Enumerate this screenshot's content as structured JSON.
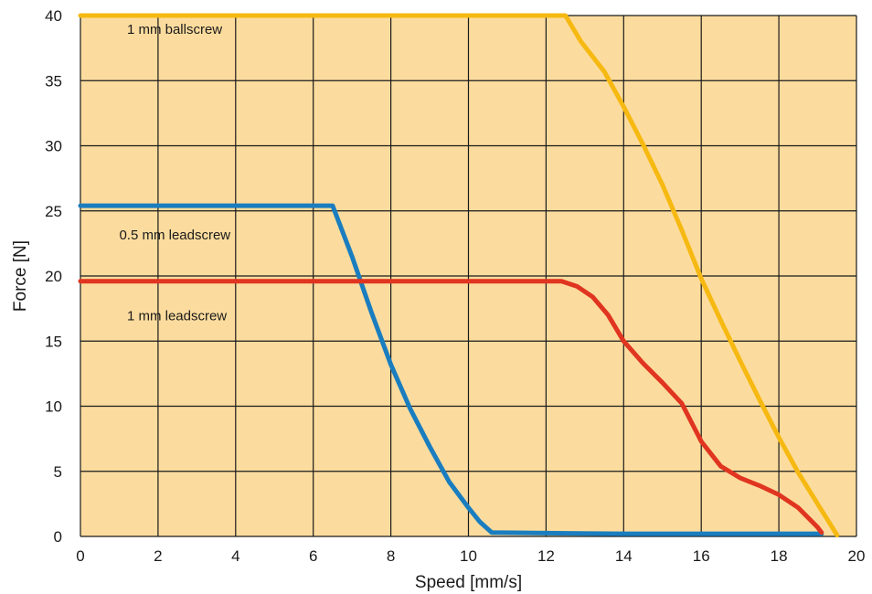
{
  "chart_data": {
    "type": "line",
    "xlabel": "Speed [mm/s]",
    "ylabel": "Force [N]",
    "xlim": [
      0,
      20
    ],
    "ylim": [
      0,
      40
    ],
    "xticks": [
      0,
      2,
      4,
      6,
      8,
      10,
      12,
      14,
      16,
      18,
      20
    ],
    "yticks": [
      0,
      5,
      10,
      15,
      20,
      25,
      30,
      35,
      40
    ],
    "grid": true,
    "colors": {
      "plot_background": "#fcdc9e",
      "grid": "#1a1a1a"
    },
    "series": [
      {
        "name": "1 mm ballscrew",
        "color": "#f6b912",
        "x": [
          0,
          12.5,
          12.9,
          13.5,
          14.0,
          14.5,
          15.0,
          15.5,
          16.0,
          16.5,
          17.0,
          17.5,
          18.0,
          18.5,
          19.0,
          19.5
        ],
        "y": [
          40,
          40,
          38.0,
          35.7,
          33.0,
          30.1,
          27.0,
          23.5,
          19.8,
          16.6,
          13.5,
          10.5,
          7.6,
          4.9,
          2.5,
          0.1
        ]
      },
      {
        "name": "0.5 mm leadscrew",
        "color": "#1a7dbf",
        "x": [
          0,
          6.5,
          7.0,
          7.5,
          8.0,
          8.5,
          9.0,
          9.5,
          10.0,
          10.3,
          10.6,
          12.0,
          14.0,
          16.0,
          18.0,
          19.1
        ],
        "y": [
          25.4,
          25.4,
          21.5,
          17.2,
          13.2,
          9.8,
          6.9,
          4.2,
          2.2,
          1.1,
          0.3,
          0.25,
          0.2,
          0.2,
          0.2,
          0.2
        ]
      },
      {
        "name": "1 mm leadscrew",
        "color": "#e03520",
        "x": [
          0,
          12.4,
          12.8,
          13.2,
          13.6,
          14.0,
          14.5,
          15.0,
          15.5,
          16.0,
          16.5,
          17.0,
          17.5,
          18.0,
          18.5,
          19.0,
          19.1
        ],
        "y": [
          19.6,
          19.6,
          19.2,
          18.4,
          17.0,
          15.0,
          13.3,
          11.8,
          10.2,
          7.3,
          5.4,
          4.5,
          3.9,
          3.2,
          2.2,
          0.7,
          0.3
        ]
      }
    ],
    "annotations": [
      {
        "text": "1 mm ballscrew",
        "x": 1.2,
        "y": 38.6
      },
      {
        "text": "0.5 mm leadscrew",
        "x": 1.0,
        "y": 22.8
      },
      {
        "text": "1 mm leadscrew",
        "x": 1.2,
        "y": 16.6
      }
    ]
  }
}
